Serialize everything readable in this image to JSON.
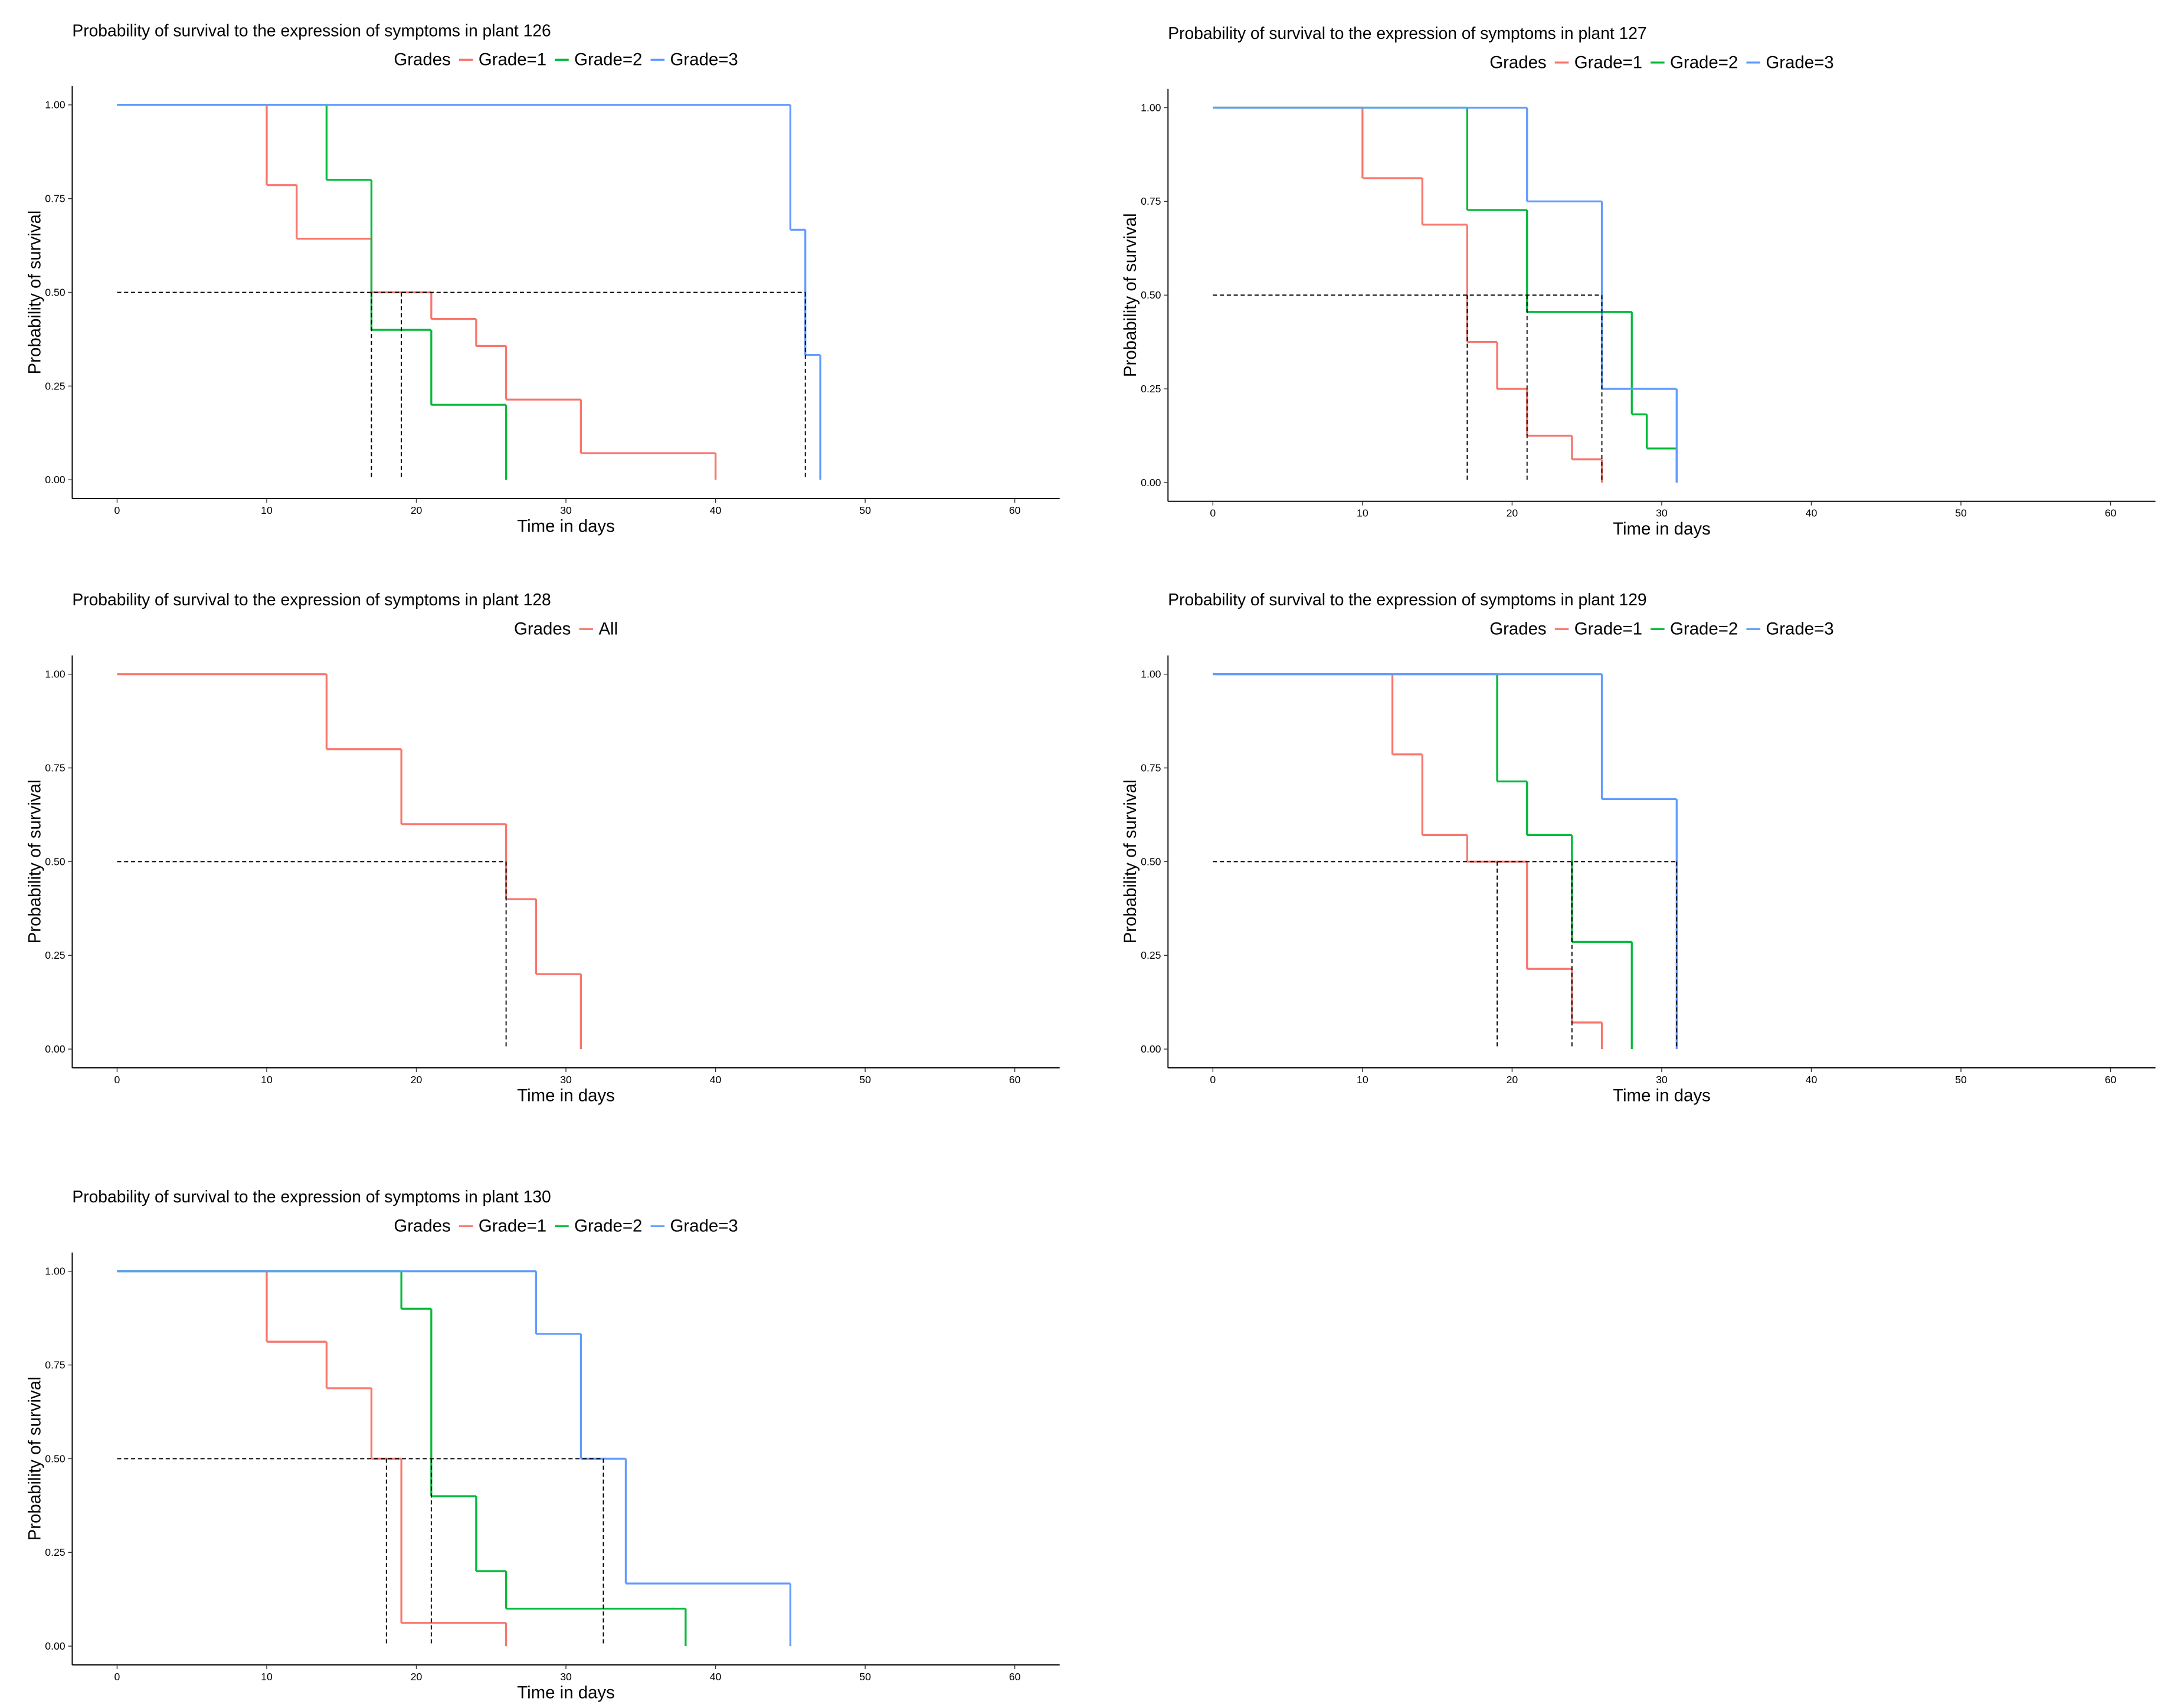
{
  "chart_data": [
    {
      "type": "step",
      "title": "Probability of survival to the expression of symptoms in plant 126",
      "legend_title": "Grades",
      "x_label": "Time in days",
      "y_label": "Probability of survival",
      "xlim": [
        -3,
        63
      ],
      "ylim": [
        -0.05,
        1.05
      ],
      "xticks": [
        0,
        10,
        20,
        30,
        40,
        50,
        60
      ],
      "yticks": [
        {
          "value": 0,
          "label": "0.00"
        },
        {
          "value": 0.25,
          "label": "0.25"
        },
        {
          "value": 0.5,
          "label": "0.50"
        },
        {
          "value": 0.75,
          "label": "0.75"
        },
        {
          "value": 1,
          "label": "1.00"
        }
      ],
      "series": [
        {
          "name": "Grade=1",
          "color": "#F8766D",
          "x": [
            0,
            10,
            12,
            17,
            21,
            24,
            26,
            31,
            40
          ],
          "values": [
            1,
            0.786,
            0.643,
            0.5,
            0.429,
            0.357,
            0.214,
            0.071,
            0
          ]
        },
        {
          "name": "Grade=2",
          "color": "#00BA38",
          "x": [
            0,
            14,
            17,
            21,
            26
          ],
          "values": [
            1,
            0.8,
            0.4,
            0.2,
            0
          ]
        },
        {
          "name": "Grade=3",
          "color": "#619CFF",
          "x": [
            0,
            45,
            46,
            47
          ],
          "values": [
            1,
            0.667,
            0.333,
            0
          ]
        }
      ],
      "median_lines": {
        "y": 0.5,
        "x": [
          19,
          17,
          46
        ]
      }
    },
    {
      "type": "step",
      "title": "Probability of survival to the expression of symptoms in plant 127",
      "legend_title": "Grades",
      "x_label": "Time in days",
      "y_label": "Probability of survival",
      "xlim": [
        -3,
        63
      ],
      "ylim": [
        -0.05,
        1.05
      ],
      "xticks": [
        0,
        10,
        20,
        30,
        40,
        50,
        60
      ],
      "yticks": [
        {
          "value": 0,
          "label": "0.00"
        },
        {
          "value": 0.25,
          "label": "0.25"
        },
        {
          "value": 0.5,
          "label": "0.50"
        },
        {
          "value": 0.75,
          "label": "0.75"
        },
        {
          "value": 1,
          "label": "1.00"
        }
      ],
      "series": [
        {
          "name": "Grade=1",
          "color": "#F8766D",
          "x": [
            0,
            10,
            14,
            17,
            19,
            21,
            24,
            26
          ],
          "values": [
            1,
            0.812,
            0.688,
            0.375,
            0.25,
            0.125,
            0.062,
            0
          ]
        },
        {
          "name": "Grade=2",
          "color": "#00BA38",
          "x": [
            0,
            17,
            21,
            28,
            29,
            31
          ],
          "values": [
            1,
            0.727,
            0.455,
            0.182,
            0.091,
            0
          ]
        },
        {
          "name": "Grade=3",
          "color": "#619CFF",
          "x": [
            0,
            21,
            26,
            31
          ],
          "values": [
            1,
            0.75,
            0.25,
            0
          ]
        }
      ],
      "median_lines": {
        "y": 0.5,
        "x": [
          17,
          21,
          26
        ]
      }
    },
    {
      "type": "step",
      "title": "Probability of survival to the expression of symptoms in plant 128",
      "legend_title": "Grades",
      "x_label": "Time in days",
      "y_label": "Probability of survival",
      "xlim": [
        -3,
        63
      ],
      "ylim": [
        -0.05,
        1.05
      ],
      "xticks": [
        0,
        10,
        20,
        30,
        40,
        50,
        60
      ],
      "yticks": [
        {
          "value": 0,
          "label": "0.00"
        },
        {
          "value": 0.25,
          "label": "0.25"
        },
        {
          "value": 0.5,
          "label": "0.50"
        },
        {
          "value": 0.75,
          "label": "0.75"
        },
        {
          "value": 1,
          "label": "1.00"
        }
      ],
      "series": [
        {
          "name": "All",
          "color": "#F8766D",
          "x": [
            0,
            14,
            19,
            26,
            28,
            31
          ],
          "values": [
            1,
            0.8,
            0.6,
            0.4,
            0.2,
            0
          ]
        }
      ],
      "median_lines": {
        "y": 0.5,
        "x": [
          26
        ]
      }
    },
    {
      "type": "step",
      "title": "Probability of survival to the expression of symptoms in plant 129",
      "legend_title": "Grades",
      "x_label": "Time in days",
      "y_label": "Probability of survival",
      "xlim": [
        -3,
        63
      ],
      "ylim": [
        -0.05,
        1.05
      ],
      "xticks": [
        0,
        10,
        20,
        30,
        40,
        50,
        60
      ],
      "yticks": [
        {
          "value": 0,
          "label": "0.00"
        },
        {
          "value": 0.25,
          "label": "0.25"
        },
        {
          "value": 0.5,
          "label": "0.50"
        },
        {
          "value": 0.75,
          "label": "0.75"
        },
        {
          "value": 1,
          "label": "1.00"
        }
      ],
      "series": [
        {
          "name": "Grade=1",
          "color": "#F8766D",
          "x": [
            0,
            12,
            14,
            17,
            21,
            24,
            26
          ],
          "values": [
            1,
            0.786,
            0.571,
            0.5,
            0.214,
            0.071,
            0
          ]
        },
        {
          "name": "Grade=2",
          "color": "#00BA38",
          "x": [
            0,
            19,
            21,
            24,
            28
          ],
          "values": [
            1,
            0.714,
            0.571,
            0.286,
            0
          ]
        },
        {
          "name": "Grade=3",
          "color": "#619CFF",
          "x": [
            0,
            26,
            31
          ],
          "values": [
            1,
            0.667,
            0
          ]
        }
      ],
      "median_lines": {
        "y": 0.5,
        "x": [
          19,
          24,
          31
        ]
      }
    },
    {
      "type": "step",
      "title": "Probability of survival to the expression of symptoms in plant 130",
      "legend_title": "Grades",
      "x_label": "Time in days",
      "y_label": "Probability of survival",
      "xlim": [
        -3,
        63
      ],
      "ylim": [
        -0.05,
        1.05
      ],
      "xticks": [
        0,
        10,
        20,
        30,
        40,
        50,
        60
      ],
      "yticks": [
        {
          "value": 0,
          "label": "0.00"
        },
        {
          "value": 0.25,
          "label": "0.25"
        },
        {
          "value": 0.5,
          "label": "0.50"
        },
        {
          "value": 0.75,
          "label": "0.75"
        },
        {
          "value": 1,
          "label": "1.00"
        }
      ],
      "series": [
        {
          "name": "Grade=1",
          "color": "#F8766D",
          "x": [
            0,
            10,
            14,
            17,
            19,
            26
          ],
          "values": [
            1,
            0.812,
            0.688,
            0.5,
            0.062,
            0
          ]
        },
        {
          "name": "Grade=2",
          "color": "#00BA38",
          "x": [
            0,
            19,
            21,
            24,
            26,
            38
          ],
          "values": [
            1,
            0.9,
            0.4,
            0.2,
            0.1,
            0
          ]
        },
        {
          "name": "Grade=3",
          "color": "#619CFF",
          "x": [
            0,
            28,
            31,
            34,
            45
          ],
          "values": [
            1,
            0.833,
            0.5,
            0.167,
            0
          ]
        }
      ],
      "median_lines": {
        "y": 0.5,
        "x": [
          18,
          21,
          32.5
        ]
      }
    }
  ]
}
